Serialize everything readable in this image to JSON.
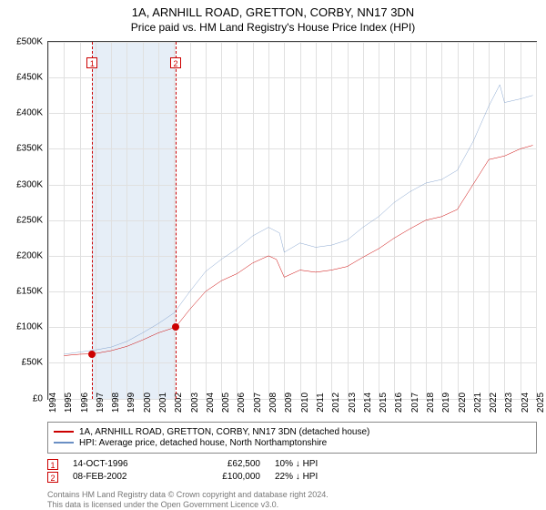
{
  "title": "1A, ARNHILL ROAD, GRETTON, CORBY, NN17 3DN",
  "subtitle": "Price paid vs. HM Land Registry's House Price Index (HPI)",
  "chart": {
    "type": "line",
    "background_color": "#ffffff",
    "grid_color": "#e0e0e0",
    "border_color": "#444444",
    "y": {
      "min": 0,
      "max": 500000,
      "step": 50000,
      "labels": [
        "£0",
        "£50K",
        "£100K",
        "£150K",
        "£200K",
        "£250K",
        "£300K",
        "£350K",
        "£400K",
        "£450K",
        "£500K"
      ]
    },
    "x": {
      "min": 1994,
      "max": 2025,
      "step": 1,
      "labels": [
        "1994",
        "1995",
        "1996",
        "1997",
        "1998",
        "1999",
        "2000",
        "2001",
        "2002",
        "2003",
        "2004",
        "2005",
        "2006",
        "2007",
        "2008",
        "2009",
        "2010",
        "2011",
        "2012",
        "2013",
        "2014",
        "2015",
        "2016",
        "2017",
        "2018",
        "2019",
        "2020",
        "2021",
        "2022",
        "2023",
        "2024",
        "2025"
      ]
    },
    "shaded": {
      "start": 1996.8,
      "end": 2002.1,
      "color": "#e6eef7"
    },
    "sale_line_color": "#cc0000",
    "series": [
      {
        "name": "price_paid",
        "color": "#cc0000",
        "width": 1.5,
        "legend": "1A, ARNHILL ROAD, GRETTON, CORBY, NN17 3DN (detached house)",
        "points": [
          [
            1995,
            60000
          ],
          [
            1996,
            62000
          ],
          [
            1996.8,
            62500
          ],
          [
            1997,
            63000
          ],
          [
            1998,
            67000
          ],
          [
            1999,
            73000
          ],
          [
            2000,
            82000
          ],
          [
            2001,
            92000
          ],
          [
            2002.1,
            100000
          ],
          [
            2003,
            125000
          ],
          [
            2004,
            150000
          ],
          [
            2005,
            165000
          ],
          [
            2006,
            175000
          ],
          [
            2007,
            190000
          ],
          [
            2008,
            200000
          ],
          [
            2008.5,
            195000
          ],
          [
            2009,
            170000
          ],
          [
            2010,
            180000
          ],
          [
            2011,
            177000
          ],
          [
            2012,
            180000
          ],
          [
            2013,
            185000
          ],
          [
            2014,
            198000
          ],
          [
            2015,
            210000
          ],
          [
            2016,
            225000
          ],
          [
            2017,
            238000
          ],
          [
            2018,
            250000
          ],
          [
            2019,
            255000
          ],
          [
            2020,
            265000
          ],
          [
            2021,
            300000
          ],
          [
            2022,
            335000
          ],
          [
            2023,
            340000
          ],
          [
            2024,
            350000
          ],
          [
            2024.8,
            355000
          ]
        ]
      },
      {
        "name": "hpi",
        "color": "#6a8fc4",
        "width": 1.2,
        "legend": "HPI: Average price, detached house, North Northamptonshire",
        "points": [
          [
            1995,
            62000
          ],
          [
            1996,
            65000
          ],
          [
            1997,
            68000
          ],
          [
            1998,
            72000
          ],
          [
            1999,
            80000
          ],
          [
            2000,
            92000
          ],
          [
            2001,
            105000
          ],
          [
            2002,
            120000
          ],
          [
            2003,
            150000
          ],
          [
            2004,
            178000
          ],
          [
            2005,
            195000
          ],
          [
            2006,
            210000
          ],
          [
            2007,
            228000
          ],
          [
            2008,
            240000
          ],
          [
            2008.7,
            232000
          ],
          [
            2009,
            205000
          ],
          [
            2010,
            218000
          ],
          [
            2011,
            212000
          ],
          [
            2012,
            215000
          ],
          [
            2013,
            222000
          ],
          [
            2014,
            240000
          ],
          [
            2015,
            255000
          ],
          [
            2016,
            275000
          ],
          [
            2017,
            290000
          ],
          [
            2018,
            302000
          ],
          [
            2019,
            307000
          ],
          [
            2020,
            320000
          ],
          [
            2021,
            360000
          ],
          [
            2022,
            410000
          ],
          [
            2022.7,
            440000
          ],
          [
            2023,
            415000
          ],
          [
            2024,
            420000
          ],
          [
            2024.8,
            425000
          ]
        ]
      }
    ],
    "sales": [
      {
        "n": "1",
        "date": "14-OCT-1996",
        "x": 1996.8,
        "price_label": "£62,500",
        "price": 62500,
        "delta_label": "10% ↓ HPI"
      },
      {
        "n": "2",
        "date": "08-FEB-2002",
        "x": 2002.1,
        "price_label": "£100,000",
        "price": 100000,
        "delta_label": "22% ↓ HPI"
      }
    ]
  },
  "footnote_l1": "Contains HM Land Registry data © Crown copyright and database right 2024.",
  "footnote_l2": "This data is licensed under the Open Government Licence v3.0."
}
